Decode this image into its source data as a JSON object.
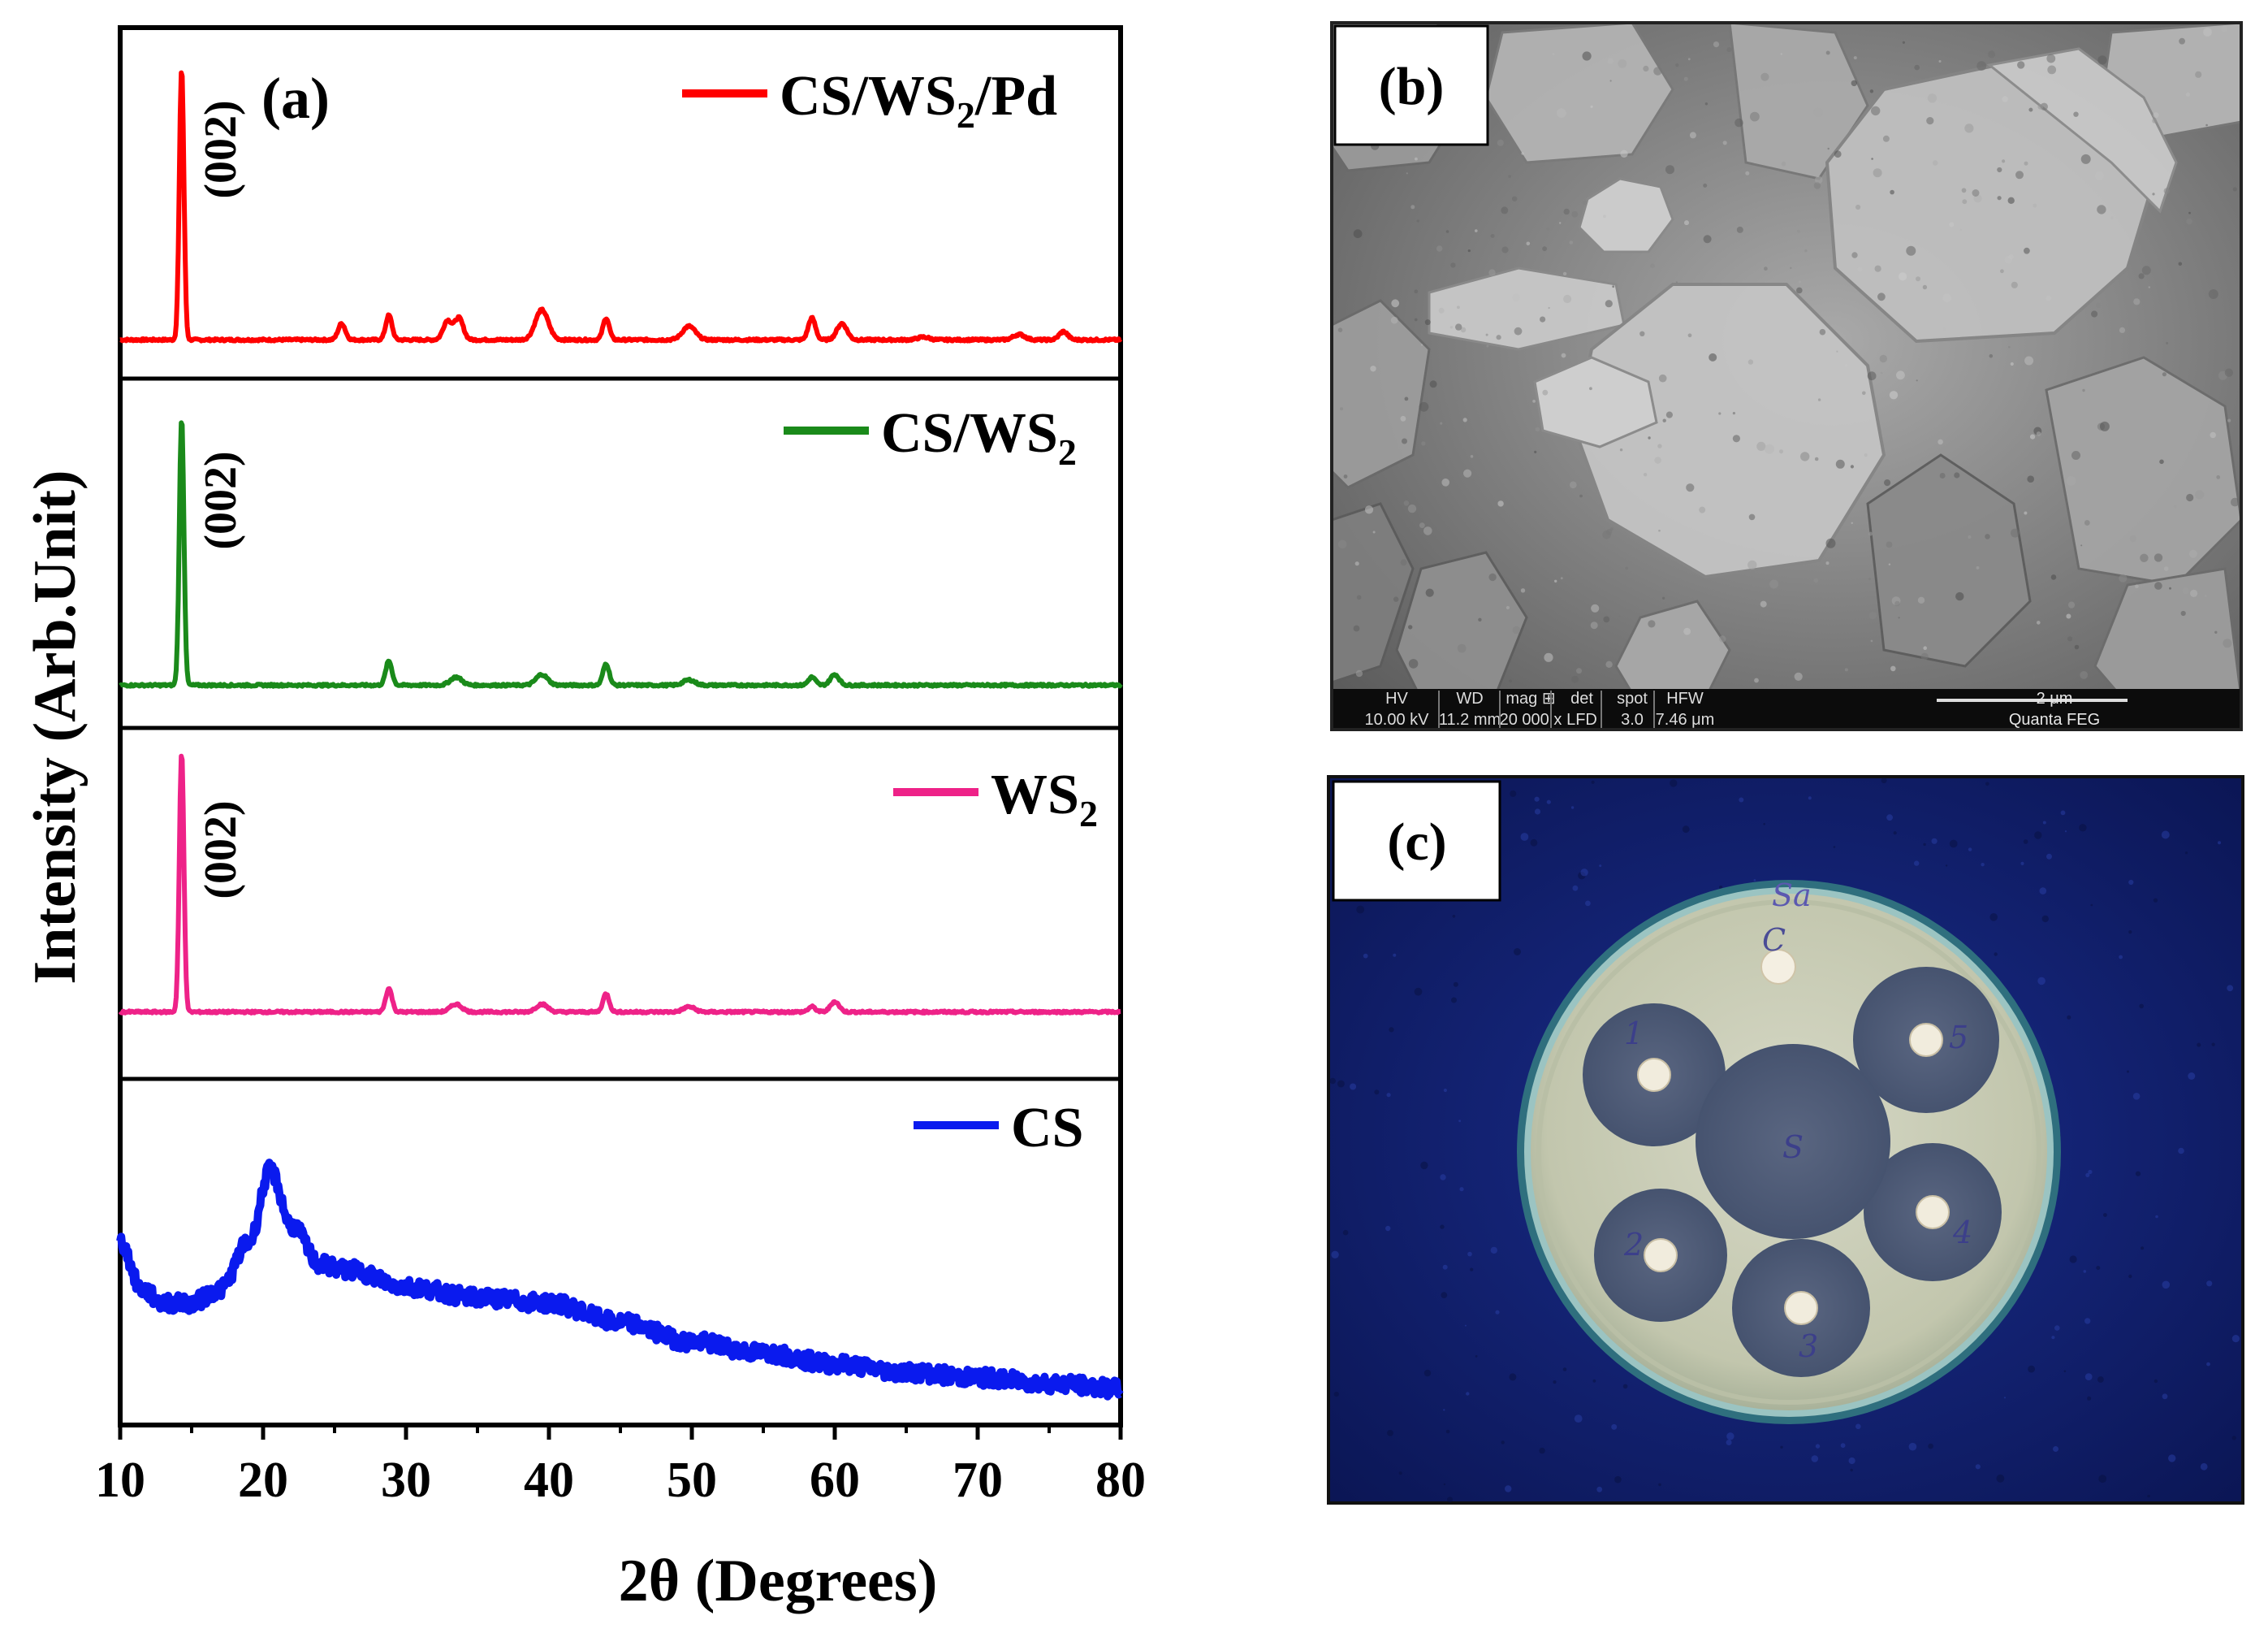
{
  "chart_data": {
    "type": "line",
    "panel_label": "(a)",
    "xlabel": "2θ (Degrees)",
    "ylabel": "Intensity (Arb.Unit)",
    "xlim": [
      10,
      80
    ],
    "x_ticks": [
      10,
      20,
      30,
      40,
      50,
      60,
      70,
      80
    ],
    "y_ticks": "none",
    "series": [
      {
        "name": "CS/WS2/Pd",
        "legend_main": "CS/WS",
        "legend_sub": "2",
        "legend_tail": "/Pd",
        "color": "#ff0000",
        "peak_label": "(002)",
        "baseline": 0.02,
        "noise": 0.004,
        "peaks": [
          [
            14.3,
            1.0,
            0.16
          ],
          [
            25.5,
            0.06,
            0.25
          ],
          [
            28.8,
            0.09,
            0.22
          ],
          [
            32.9,
            0.07,
            0.3
          ],
          [
            33.7,
            0.08,
            0.3
          ],
          [
            39.5,
            0.11,
            0.45
          ],
          [
            44.0,
            0.08,
            0.22
          ],
          [
            49.8,
            0.05,
            0.45
          ],
          [
            58.4,
            0.08,
            0.25
          ],
          [
            60.5,
            0.06,
            0.35
          ],
          [
            66.2,
            0.01,
            0.4
          ],
          [
            72.9,
            0.02,
            0.4
          ],
          [
            76.0,
            0.03,
            0.3
          ]
        ]
      },
      {
        "name": "CS/WS2",
        "legend_main": "CS/WS",
        "legend_sub": "2",
        "legend_tail": "",
        "color": "#1a8a1a",
        "peak_label": "(002)",
        "baseline": 0.02,
        "noise": 0.004,
        "peaks": [
          [
            14.3,
            1.0,
            0.16
          ],
          [
            28.8,
            0.09,
            0.22
          ],
          [
            33.5,
            0.03,
            0.4
          ],
          [
            39.5,
            0.04,
            0.4
          ],
          [
            44.0,
            0.08,
            0.22
          ],
          [
            49.8,
            0.02,
            0.4
          ],
          [
            58.4,
            0.03,
            0.25
          ],
          [
            60.0,
            0.04,
            0.3
          ]
        ]
      },
      {
        "name": "WS2",
        "legend_main": "WS",
        "legend_sub": "2",
        "legend_tail": "",
        "color": "#ee2288",
        "peak_label": "(002)",
        "baseline": 0.02,
        "noise": 0.004,
        "peaks": [
          [
            14.3,
            1.0,
            0.16
          ],
          [
            28.8,
            0.09,
            0.22
          ],
          [
            33.5,
            0.03,
            0.4
          ],
          [
            39.5,
            0.03,
            0.4
          ],
          [
            44.0,
            0.07,
            0.22
          ],
          [
            49.8,
            0.02,
            0.4
          ],
          [
            58.4,
            0.02,
            0.25
          ],
          [
            60.0,
            0.04,
            0.3
          ]
        ]
      },
      {
        "name": "CS",
        "legend_main": "CS",
        "legend_sub": "",
        "legend_tail": "",
        "color": "#0a1aee",
        "peak_label": "",
        "noise": 0.03,
        "profile_x": [
          10,
          11.5,
          13,
          15,
          17,
          19,
          20.5,
          22,
          24,
          26,
          30,
          35,
          40,
          45,
          50,
          55,
          60,
          65,
          70,
          75,
          80
        ],
        "profile_y": [
          0.62,
          0.45,
          0.4,
          0.4,
          0.45,
          0.62,
          0.88,
          0.68,
          0.54,
          0.52,
          0.46,
          0.42,
          0.4,
          0.33,
          0.26,
          0.22,
          0.18,
          0.15,
          0.13,
          0.11,
          0.09
        ]
      }
    ]
  },
  "panel_b": {
    "label": "(b)",
    "scale_bar": "2 μm",
    "info_headers": [
      "HV",
      "WD",
      "mag ⊞",
      "det",
      "spot",
      "HFW"
    ],
    "info_values": [
      "10.00 kV",
      "11.2 mm",
      "20 000 x",
      "LFD",
      "3.0",
      "7.46 μm"
    ],
    "instrument": "Quanta FEG"
  },
  "panel_c": {
    "label": "(c)",
    "plate_title": "Sa",
    "control_label": "C",
    "sample_label": "S",
    "well_labels": [
      "1",
      "2",
      "3",
      "4",
      "5"
    ]
  },
  "colors": {
    "axis": "#000000",
    "sem_bg": "#8a8a8a",
    "plate_bg": "#0f1f6e",
    "agar": "#c9ccb6",
    "zone": "#4d5a77"
  }
}
